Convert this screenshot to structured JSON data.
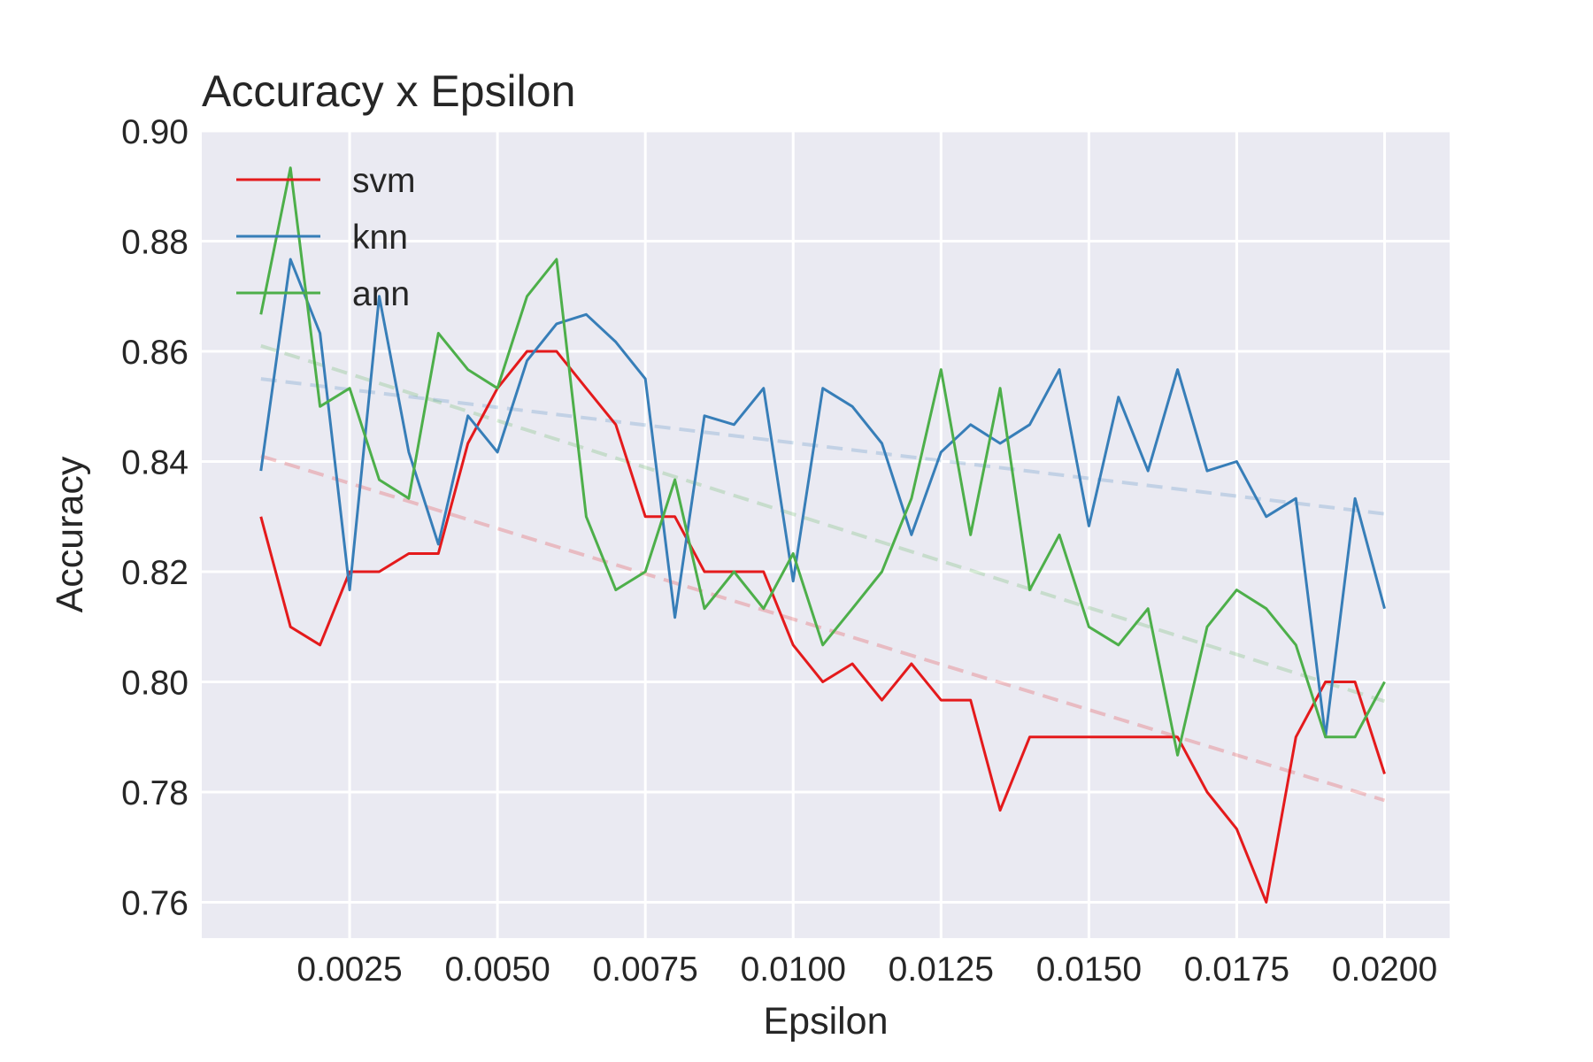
{
  "chart_data": {
    "type": "line",
    "title": "Accuracy x Epsilon",
    "xlabel": "Epsilon",
    "ylabel": "Accuracy",
    "xlim": [
      0.0,
      0.0211
    ],
    "ylim": [
      0.7535,
      0.9
    ],
    "xticks": [
      0.0025,
      0.005,
      0.0075,
      0.01,
      0.0125,
      0.015,
      0.0175,
      0.02
    ],
    "xtick_labels": [
      "0.0025",
      "0.0050",
      "0.0075",
      "0.0100",
      "0.0125",
      "0.0150",
      "0.0175",
      "0.0200"
    ],
    "yticks": [
      0.76,
      0.78,
      0.8,
      0.82,
      0.84,
      0.86,
      0.88,
      0.9
    ],
    "ytick_labels": [
      "0.76",
      "0.78",
      "0.80",
      "0.82",
      "0.84",
      "0.86",
      "0.88",
      "0.90"
    ],
    "grid": true,
    "legend_position": "top-left",
    "x": [
      0.001,
      0.0015,
      0.002,
      0.0025,
      0.003,
      0.0035,
      0.004,
      0.0045,
      0.005,
      0.0055,
      0.006,
      0.0065,
      0.007,
      0.0075,
      0.008,
      0.0085,
      0.009,
      0.0095,
      0.01,
      0.0105,
      0.011,
      0.0115,
      0.012,
      0.0125,
      0.013,
      0.0135,
      0.014,
      0.0145,
      0.015,
      0.0155,
      0.016,
      0.0165,
      0.017,
      0.0175,
      0.018,
      0.0185,
      0.019,
      0.0195,
      0.02
    ],
    "series": [
      {
        "name": "svm",
        "color": "#e41a1c",
        "values": [
          0.83,
          0.81,
          0.8067,
          0.82,
          0.82,
          0.8233,
          0.8233,
          0.8433,
          0.8533,
          0.86,
          0.86,
          0.8533,
          0.8467,
          0.83,
          0.83,
          0.82,
          0.82,
          0.82,
          0.8067,
          0.8,
          0.8033,
          0.7967,
          0.8033,
          0.7967,
          0.7967,
          0.7767,
          0.79,
          0.79,
          0.79,
          0.79,
          0.79,
          0.79,
          0.78,
          0.7733,
          0.76,
          0.79,
          0.8,
          0.8,
          0.7833
        ],
        "trend": [
          0.841,
          0.7785
        ]
      },
      {
        "name": "knn",
        "color": "#377eb8",
        "values": [
          0.8383,
          0.8767,
          0.8633,
          0.8167,
          0.87,
          0.8417,
          0.825,
          0.8483,
          0.8417,
          0.8583,
          0.865,
          0.8667,
          0.8617,
          0.855,
          0.8117,
          0.8483,
          0.8467,
          0.8533,
          0.8183,
          0.8533,
          0.85,
          0.8433,
          0.8267,
          0.8417,
          0.8467,
          0.8433,
          0.8467,
          0.8567,
          0.8283,
          0.8517,
          0.8383,
          0.8567,
          0.8383,
          0.84,
          0.83,
          0.8333,
          0.79,
          0.8333,
          0.8133
        ],
        "trend": [
          0.855,
          0.8305
        ]
      },
      {
        "name": "ann",
        "color": "#4daf4a",
        "values": [
          0.8667,
          0.8933,
          0.85,
          0.8533,
          0.8367,
          0.8333,
          0.8633,
          0.8567,
          0.8533,
          0.87,
          0.8767,
          0.83,
          0.8167,
          0.82,
          0.8367,
          0.8133,
          0.82,
          0.8133,
          0.8233,
          0.8067,
          0.8133,
          0.82,
          0.8333,
          0.8567,
          0.8267,
          0.8533,
          0.8167,
          0.8267,
          0.81,
          0.8067,
          0.8133,
          0.7867,
          0.81,
          0.8167,
          0.8133,
          0.8067,
          0.79,
          0.79,
          0.8
        ],
        "trend": [
          0.861,
          0.7965
        ]
      }
    ]
  }
}
